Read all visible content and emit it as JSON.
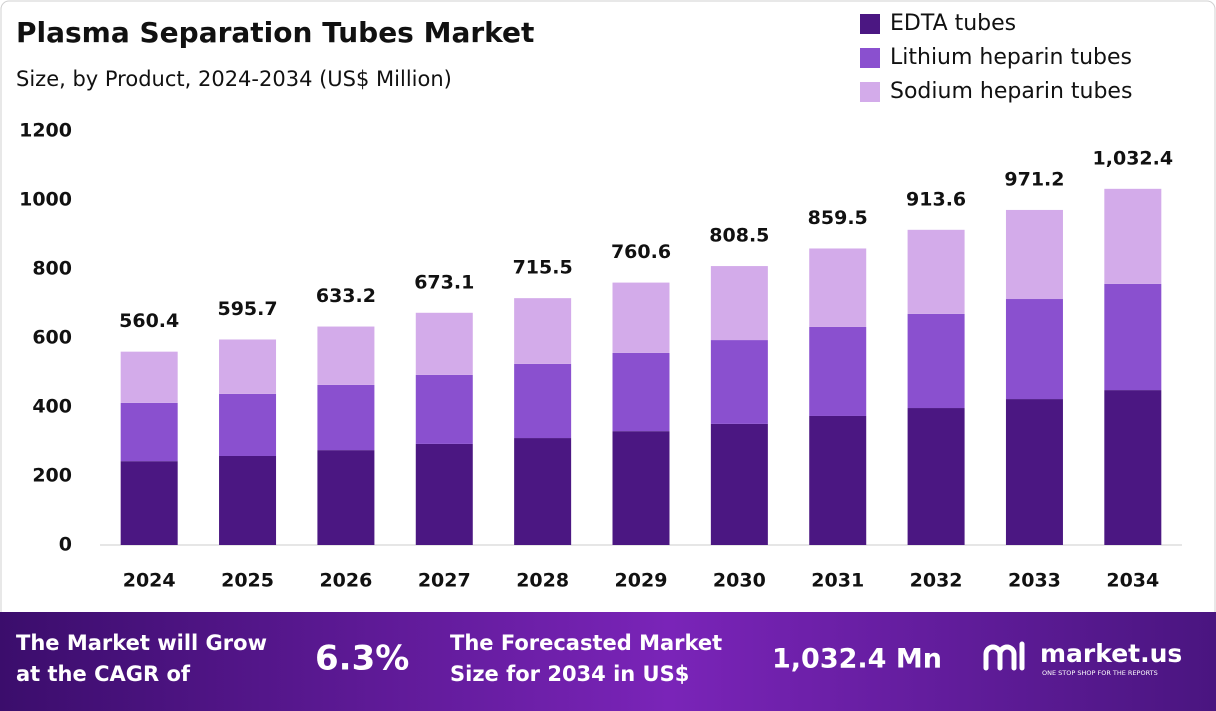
{
  "chart_data": {
    "type": "stacked-bar",
    "title": "Plasma Separation Tubes Market",
    "subtitle": "Size, by Product, 2024-2034 (US$ Million)",
    "categories": [
      "2024",
      "2025",
      "2026",
      "2027",
      "2028",
      "2029",
      "2030",
      "2031",
      "2032",
      "2033",
      "2034"
    ],
    "series": [
      {
        "name": "EDTA tubes",
        "color": "#4b1782",
        "values": [
          243,
          258,
          275,
          293,
          310,
          330,
          351,
          374,
          397,
          423,
          449
        ]
      },
      {
        "name": "Lithium heparin tubes",
        "color": "#8a50cf",
        "values": [
          169,
          180,
          189,
          200,
          215,
          227,
          243,
          258,
          273,
          290,
          308
        ]
      },
      {
        "name": "Sodium heparin tubes",
        "color": "#d3abea",
        "values": [
          148.4,
          157.7,
          169.2,
          180.1,
          190.5,
          203.6,
          214.5,
          227.5,
          243.6,
          258.2,
          275.4
        ]
      }
    ],
    "totals": [
      560.4,
      595.7,
      633.2,
      673.1,
      715.5,
      760.6,
      808.5,
      859.5,
      913.6,
      971.2,
      1032.4
    ],
    "value_labels": [
      "560.4",
      "595.7",
      "633.2",
      "673.1",
      "715.5",
      "760.6",
      "808.5",
      "859.5",
      "913.6",
      "971.2",
      "1,032.4"
    ],
    "ylim": [
      0,
      1200
    ],
    "yticks": [
      0,
      200,
      400,
      600,
      800,
      1000,
      1200
    ],
    "grid": false,
    "legend": "top-right"
  },
  "footer": {
    "cagr_text": [
      "The Market will Grow",
      "at the CAGR of"
    ],
    "cagr_value": "6.3%",
    "forecast_text": [
      "The Forecasted Market",
      "Size for 2034 in US$"
    ],
    "forecast_value": "1,032.4 Mn",
    "brand": "market.us",
    "tagline": "ONE STOP SHOP FOR THE REPORTS"
  }
}
